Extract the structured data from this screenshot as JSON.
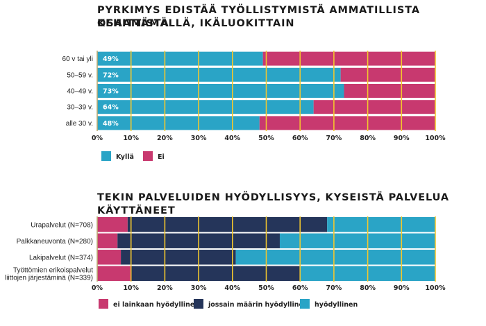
{
  "chart_data": [
    {
      "type": "bar",
      "stacked": true,
      "orientation": "horizontal",
      "title_lines": [
        "PYRKIMYS EDISTÄÄ TYÖLLISTYMISTÄ AMMATILLISTA OSAAMISTA",
        "KEHITTÄMÄLLÄ, IKÄLUOKITTAIN"
      ],
      "categories": [
        "60 v tai yli",
        "50–59 v.",
        "40–49 v.",
        "30–39 v.",
        "alle 30 v."
      ],
      "series": [
        {
          "name": "Kyllä",
          "color": "#2aa4c6",
          "values": [
            49,
            72,
            73,
            64,
            48
          ]
        },
        {
          "name": "Ei",
          "color": "#c8396f",
          "values": [
            51,
            28,
            27,
            36,
            52
          ]
        }
      ],
      "data_labels": [
        "49%",
        "72%",
        "73%",
        "64%",
        "48%"
      ],
      "x_ticks": [
        "0%",
        "10%",
        "20%",
        "30%",
        "40%",
        "50%",
        "60%",
        "70%",
        "80%",
        "90%",
        "100%"
      ],
      "xlim": [
        0,
        100
      ],
      "grid": true,
      "grid_color": "#f2c72e",
      "legend_position": "bottom-left"
    },
    {
      "type": "bar",
      "stacked": true,
      "orientation": "horizontal",
      "title": "TEKIN PALVELUIDEN HYÖDYLLISYYS, KYSEISTÄ PALVELUA KÄYTTÄNEET",
      "categories": [
        [
          "Urapalvelut (N=708)"
        ],
        [
          "Palkkaneuvonta (N=280)"
        ],
        [
          "Lakipalvelut (N=374)"
        ],
        [
          "Työttömien erikoispalvelut",
          "liittojen järjestäminä (N=339)"
        ]
      ],
      "series": [
        {
          "name": "ei lainkaan hyödyllinen",
          "color": "#c8396f",
          "values": [
            9,
            6,
            7,
            10
          ]
        },
        {
          "name": "jossain määrin hyödyllinen",
          "color": "#25355a",
          "values": [
            59,
            48,
            34,
            50
          ]
        },
        {
          "name": "hyödyllinen",
          "color": "#2aa4c6",
          "values": [
            32,
            46,
            59,
            40
          ]
        }
      ],
      "x_ticks": [
        "0%",
        "10%",
        "20%",
        "30%",
        "40%",
        "50%",
        "60%",
        "70%",
        "80%",
        "90%",
        "100%"
      ],
      "xlim": [
        0,
        100
      ],
      "grid": true,
      "grid_color": "#f2c72e",
      "legend_position": "bottom-left"
    }
  ]
}
